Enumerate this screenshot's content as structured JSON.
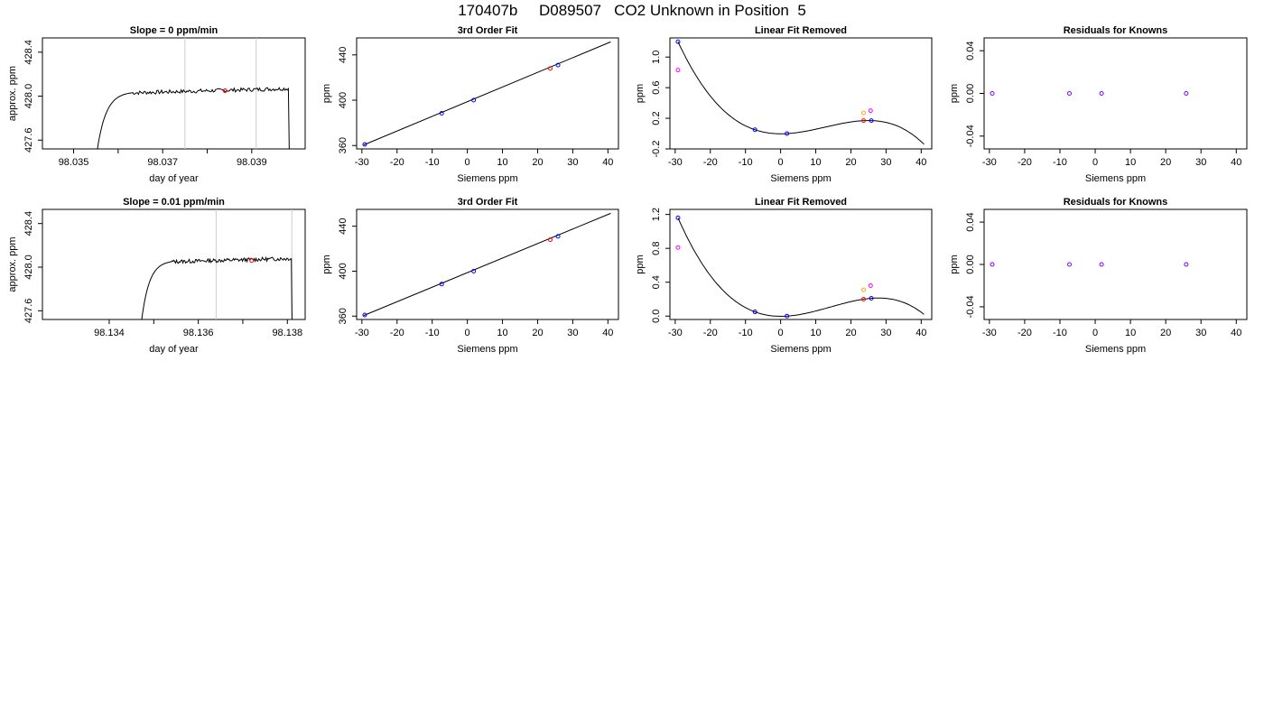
{
  "page": {
    "title": "170407b     D089507   CO2 Unknown in Position  5"
  },
  "colors": {
    "trace": "#000000",
    "vline": "#cccccc",
    "known": "#0000ff",
    "unknown": "#ff0000",
    "unknown_alt": "#ffa500",
    "magenta": "#ff00ff",
    "purple": "#8000ff"
  },
  "chart_data": [
    {
      "type": "line",
      "title": "Slope =  0  ppm/min",
      "xlabel": "day of year",
      "ylabel": "approx. ppm",
      "xlim": [
        98.0343,
        98.0402
      ],
      "ylim": [
        427.52,
        428.53
      ],
      "xticks": [
        "98.035",
        "98.036",
        "98.037",
        "98.038",
        "98.039"
      ],
      "xtick_labels": [
        "98.035",
        "",
        "98.037",
        "",
        "98.039"
      ],
      "xtick_values": [
        98.035,
        98.036,
        98.037,
        98.038,
        98.039
      ],
      "yticks": [
        427.6,
        428.0,
        428.4
      ],
      "ytick_labels": [
        "427.6",
        "428.0",
        "428.4"
      ],
      "vlines": [
        98.0375,
        98.0391
      ],
      "marker": {
        "x": 98.0384,
        "y": 428.05
      },
      "trace": {
        "x_start": 98.0355,
        "x_end": 98.0399,
        "plateau_start": 98.0363,
        "base": 428.03,
        "drift": 0.04,
        "seed": 7
      }
    },
    {
      "type": "scatter",
      "title": "3rd Order Fit",
      "xlabel": "Siemens ppm",
      "ylabel": "ppm",
      "xlim": [
        -31.5,
        43
      ],
      "ylim": [
        357,
        455
      ],
      "xticks": [
        -30,
        -20,
        -10,
        0,
        10,
        20,
        30,
        40
      ],
      "xtick_labels": [
        "-30",
        "-20",
        "-10",
        "0",
        "10",
        "20",
        "30",
        "40"
      ],
      "yticks": [
        360,
        400,
        440
      ],
      "ytick_labels": [
        "360",
        "400",
        "440"
      ],
      "fit_line": {
        "x": [
          -29.5,
          40.8
        ],
        "y": [
          360.5,
          451.5
        ]
      },
      "points": [
        {
          "x": -29.2,
          "y": 361.0,
          "color": "known"
        },
        {
          "x": -7.3,
          "y": 388.5,
          "color": "known"
        },
        {
          "x": 1.8,
          "y": 400.0,
          "color": "known"
        },
        {
          "x": 23.6,
          "y": 428.0,
          "color": "unknown"
        },
        {
          "x": 25.8,
          "y": 431.0,
          "color": "known"
        }
      ]
    },
    {
      "type": "scatter",
      "title": "Linear Fit Removed",
      "xlabel": "Siemens ppm",
      "ylabel": "ppm",
      "xlim": [
        -31.5,
        43
      ],
      "ylim": [
        -0.2,
        1.25
      ],
      "xticks": [
        -30,
        -20,
        -10,
        0,
        10,
        20,
        30,
        40
      ],
      "xtick_labels": [
        "-30",
        "-20",
        "-10",
        "0",
        "10",
        "20",
        "30",
        "40"
      ],
      "yticks": [
        -0.2,
        0.2,
        0.6,
        1.0
      ],
      "ytick_labels": [
        "-0.2",
        "0.2",
        "0.6",
        "1.0"
      ],
      "curve": {
        "x": [
          -29.2,
          -7.3,
          1.8,
          25.8,
          40.8
        ],
        "y": [
          1.2,
          0.05,
          0.0,
          0.17,
          -0.14
        ]
      },
      "points": [
        {
          "x": -29.2,
          "y": 1.2,
          "color": "known"
        },
        {
          "x": -29.2,
          "y": 0.83,
          "color": "magenta"
        },
        {
          "x": -7.3,
          "y": 0.05,
          "color": "known"
        },
        {
          "x": 1.8,
          "y": 0.0,
          "color": "known"
        },
        {
          "x": 23.6,
          "y": 0.17,
          "color": "unknown"
        },
        {
          "x": 25.8,
          "y": 0.17,
          "color": "known"
        },
        {
          "x": 23.6,
          "y": 0.27,
          "color": "unknown_alt"
        },
        {
          "x": 25.6,
          "y": 0.3,
          "color": "magenta"
        }
      ]
    },
    {
      "type": "scatter",
      "title": "Residuals for Knowns",
      "xlabel": "Siemens ppm",
      "ylabel": "ppm",
      "xlim": [
        -31.5,
        43
      ],
      "ylim": [
        -0.052,
        0.052
      ],
      "xticks": [
        -30,
        -20,
        -10,
        0,
        10,
        20,
        30,
        40
      ],
      "xtick_labels": [
        "-30",
        "-20",
        "-10",
        "0",
        "10",
        "20",
        "30",
        "40"
      ],
      "yticks": [
        -0.04,
        0.0,
        0.04
      ],
      "ytick_labels": [
        "-0.04",
        "0.00",
        "0.04"
      ],
      "points": [
        {
          "x": -29.2,
          "y": 0.0,
          "color": "purple"
        },
        {
          "x": -7.3,
          "y": 0.0,
          "color": "purple"
        },
        {
          "x": 1.8,
          "y": 0.0,
          "color": "purple"
        },
        {
          "x": 25.8,
          "y": 0.0,
          "color": "purple"
        }
      ]
    },
    {
      "type": "line",
      "title": "Slope =  0.01  ppm/min",
      "xlabel": "day of year",
      "ylabel": "approx. ppm",
      "xlim": [
        98.1325,
        98.1384
      ],
      "ylim": [
        427.52,
        428.53
      ],
      "xticks": [
        "98.134",
        "98.135",
        "98.136",
        "98.137",
        "98.138"
      ],
      "xtick_labels": [
        "98.134",
        "",
        "98.136",
        "",
        "98.138"
      ],
      "xtick_values": [
        98.134,
        98.135,
        98.136,
        98.137,
        98.138
      ],
      "yticks": [
        427.6,
        428.0,
        428.4
      ],
      "ytick_labels": [
        "427.6",
        "428.0",
        "428.4"
      ],
      "vlines": [
        98.1364,
        98.1381
      ],
      "marker": {
        "x": 98.1372,
        "y": 428.06
      },
      "trace": {
        "x_start": 98.1347,
        "x_end": 98.13815,
        "plateau_start": 98.1354,
        "base": 428.05,
        "drift": 0.03,
        "seed": 13
      }
    },
    {
      "type": "scatter",
      "title": "3rd Order Fit",
      "xlabel": "Siemens ppm",
      "ylabel": "ppm",
      "xlim": [
        -31.5,
        43
      ],
      "ylim": [
        357,
        455
      ],
      "xticks": [
        -30,
        -20,
        -10,
        0,
        10,
        20,
        30,
        40
      ],
      "xtick_labels": [
        "-30",
        "-20",
        "-10",
        "0",
        "10",
        "20",
        "30",
        "40"
      ],
      "yticks": [
        360,
        400,
        440
      ],
      "ytick_labels": [
        "360",
        "400",
        "440"
      ],
      "fit_line": {
        "x": [
          -29.5,
          40.8
        ],
        "y": [
          360.5,
          451.5
        ]
      },
      "points": [
        {
          "x": -29.2,
          "y": 361.0,
          "color": "known"
        },
        {
          "x": -7.3,
          "y": 388.5,
          "color": "known"
        },
        {
          "x": 1.8,
          "y": 400.0,
          "color": "known"
        },
        {
          "x": 23.6,
          "y": 428.0,
          "color": "unknown"
        },
        {
          "x": 25.8,
          "y": 431.0,
          "color": "known"
        }
      ]
    },
    {
      "type": "scatter",
      "title": "Linear Fit Removed",
      "xlabel": "Siemens ppm",
      "ylabel": "ppm",
      "xlim": [
        -31.5,
        43
      ],
      "ylim": [
        -0.04,
        1.26
      ],
      "xticks": [
        -30,
        -20,
        -10,
        0,
        10,
        20,
        30,
        40
      ],
      "xtick_labels": [
        "-30",
        "-20",
        "-10",
        "0",
        "10",
        "20",
        "30",
        "40"
      ],
      "yticks": [
        0.0,
        0.4,
        0.8,
        1.2
      ],
      "ytick_labels": [
        "0.0",
        "0.4",
        "0.8",
        "1.2"
      ],
      "curve": {
        "x": [
          -29.2,
          -7.3,
          1.8,
          25.8,
          40.8
        ],
        "y": [
          1.16,
          0.05,
          0.0,
          0.21,
          0.02
        ]
      },
      "points": [
        {
          "x": -29.2,
          "y": 1.16,
          "color": "known"
        },
        {
          "x": -29.2,
          "y": 0.81,
          "color": "magenta"
        },
        {
          "x": -7.3,
          "y": 0.05,
          "color": "known"
        },
        {
          "x": 1.8,
          "y": 0.0,
          "color": "known"
        },
        {
          "x": 23.6,
          "y": 0.2,
          "color": "unknown"
        },
        {
          "x": 25.8,
          "y": 0.21,
          "color": "known"
        },
        {
          "x": 23.6,
          "y": 0.31,
          "color": "unknown_alt"
        },
        {
          "x": 25.6,
          "y": 0.36,
          "color": "magenta"
        }
      ]
    },
    {
      "type": "scatter",
      "title": "Residuals for Knowns",
      "xlabel": "Siemens ppm",
      "ylabel": "ppm",
      "xlim": [
        -31.5,
        43
      ],
      "ylim": [
        -0.052,
        0.052
      ],
      "xticks": [
        -30,
        -20,
        -10,
        0,
        10,
        20,
        30,
        40
      ],
      "xtick_labels": [
        "-30",
        "-20",
        "-10",
        "0",
        "10",
        "20",
        "30",
        "40"
      ],
      "yticks": [
        -0.04,
        0.0,
        0.04
      ],
      "ytick_labels": [
        "-0.04",
        "0.00",
        "0.04"
      ],
      "points": [
        {
          "x": -29.2,
          "y": 0.0,
          "color": "purple"
        },
        {
          "x": -7.3,
          "y": 0.0,
          "color": "purple"
        },
        {
          "x": 1.8,
          "y": 0.0,
          "color": "purple"
        },
        {
          "x": 25.8,
          "y": 0.0,
          "color": "purple"
        }
      ]
    }
  ]
}
